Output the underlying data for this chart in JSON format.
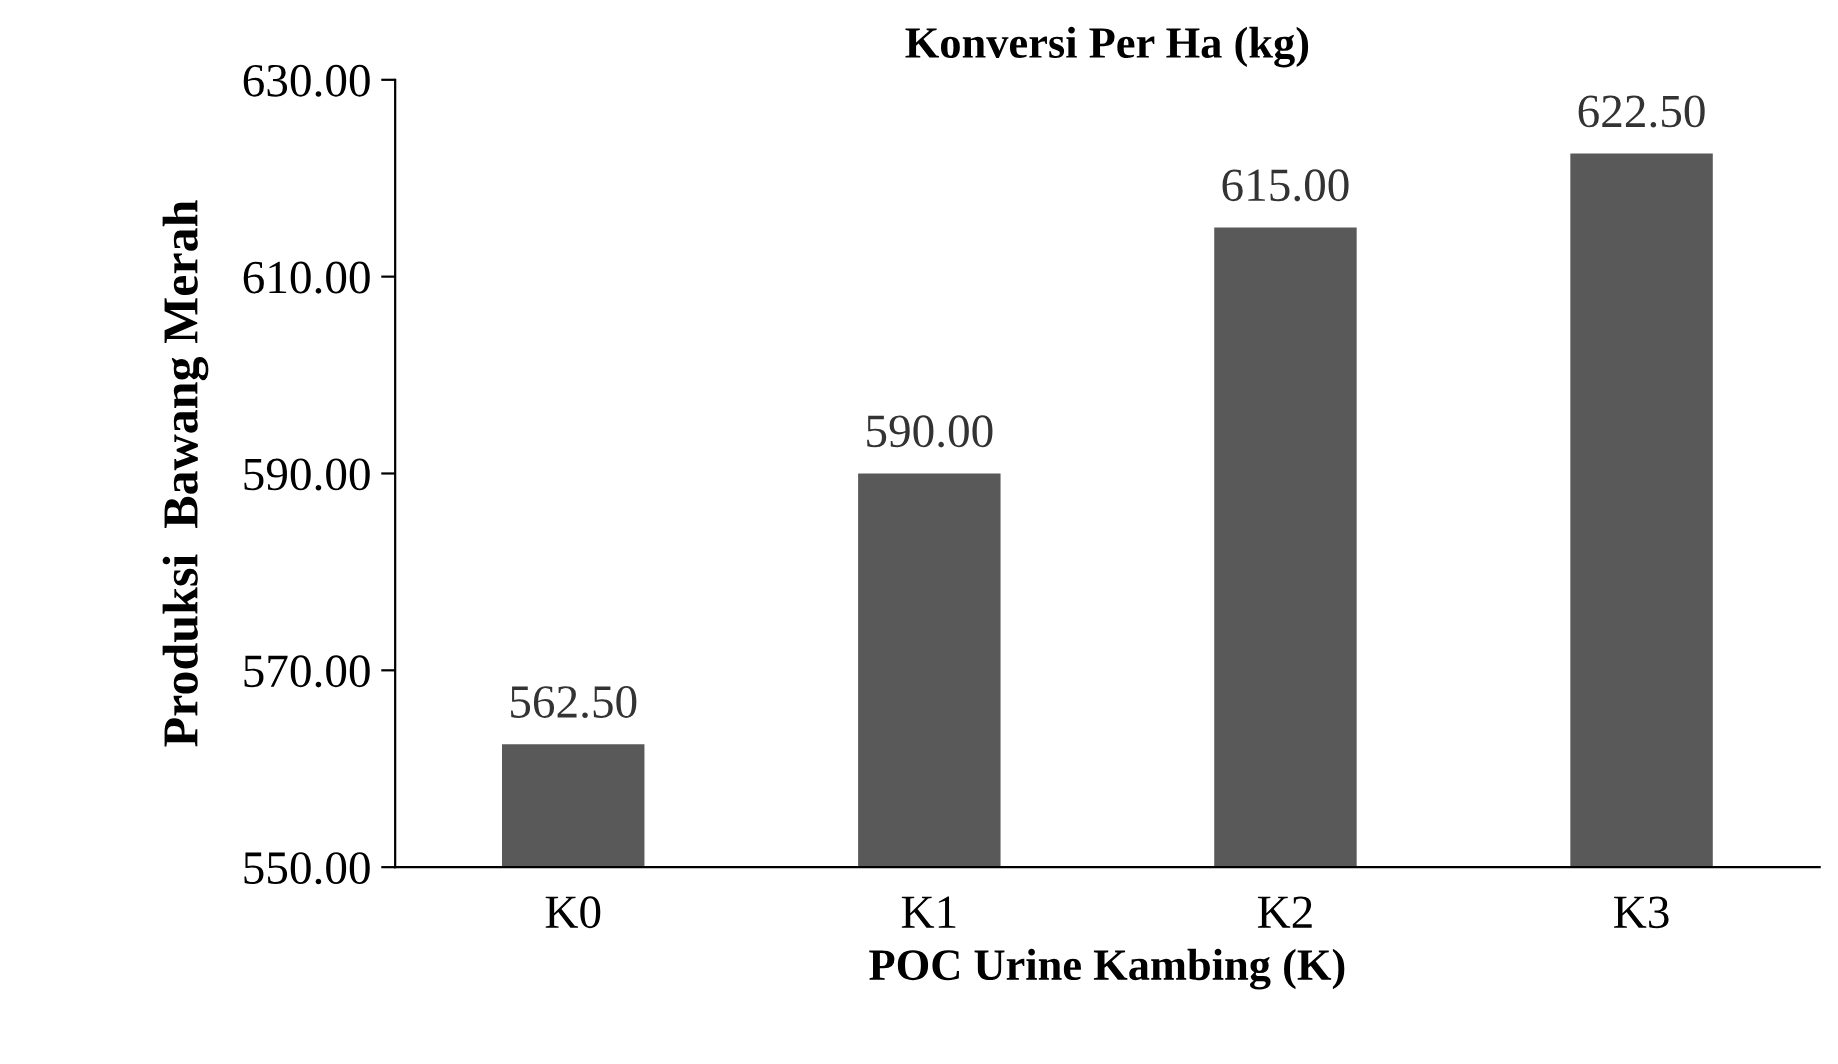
{
  "chart_data": {
    "type": "bar",
    "title": "Konversi Per Ha (kg)",
    "xlabel": "POC Urine Kambing (K)",
    "ylabel": "Produksi  Bawang Merah",
    "categories": [
      "K0",
      "K1",
      "K2",
      "K3"
    ],
    "values": [
      562.5,
      590,
      615,
      622.5
    ],
    "value_labels": [
      "562.50",
      "590.00",
      "615.00",
      "622.50"
    ],
    "color": "#595959",
    "ylim": [
      550,
      630
    ],
    "yticks": [
      {
        "value": 550,
        "label": "550.00"
      },
      {
        "value": 570,
        "label": "570.00"
      },
      {
        "value": 590,
        "label": "590.00"
      },
      {
        "value": 610,
        "label": "610.00"
      },
      {
        "value": 630,
        "label": "630.00"
      }
    ],
    "grid": false,
    "legend": false
  }
}
